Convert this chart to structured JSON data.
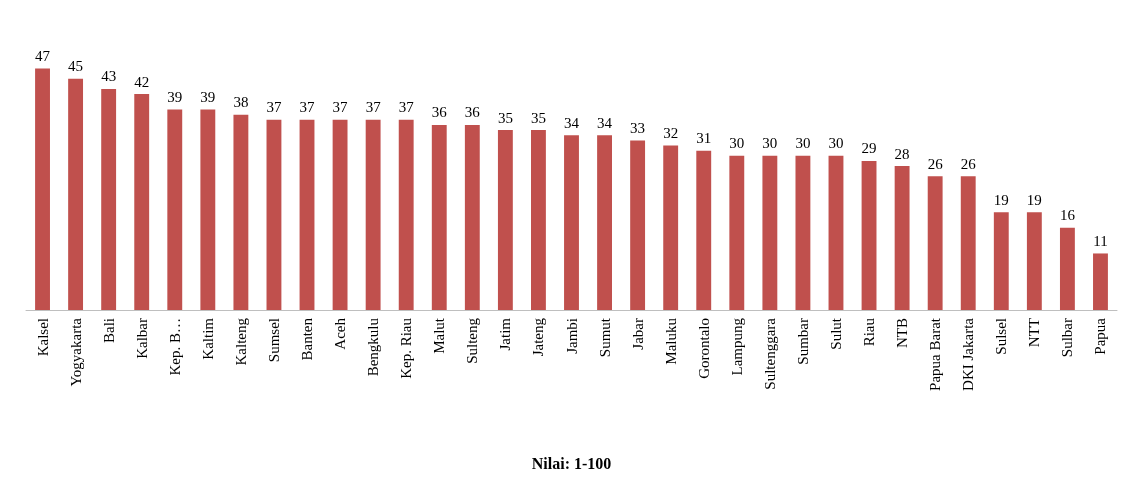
{
  "chart_data": {
    "type": "bar",
    "xlabel": "Nilai: 1-100",
    "categories": [
      "Kalsel",
      "Yogyakarta",
      "Bali",
      "Kalbar",
      "Kep. B…",
      "Kaltim",
      "Kalteng",
      "Sumsel",
      "Banten",
      "Aceh",
      "Bengkulu",
      "Kep. Riau",
      "Malut",
      "Sulteng",
      "Jatim",
      "Jateng",
      "Jambi",
      "Sumut",
      "Jabar",
      "Maluku",
      "Gorontalo",
      "Lampung",
      "Sultenggara",
      "Sumbar",
      "Sulut",
      "Riau",
      "NTB",
      "Papua Barat",
      "DKI Jakarta",
      "Sulsel",
      "NTT",
      "Sulbar",
      "Papua"
    ],
    "values": [
      47,
      45,
      43,
      42,
      39,
      39,
      38,
      37,
      37,
      37,
      37,
      37,
      36,
      36,
      35,
      35,
      34,
      34,
      33,
      32,
      31,
      30,
      30,
      30,
      30,
      29,
      28,
      26,
      26,
      19,
      19,
      16,
      11
    ],
    "color": "#c0504d",
    "data_labels": true
  }
}
